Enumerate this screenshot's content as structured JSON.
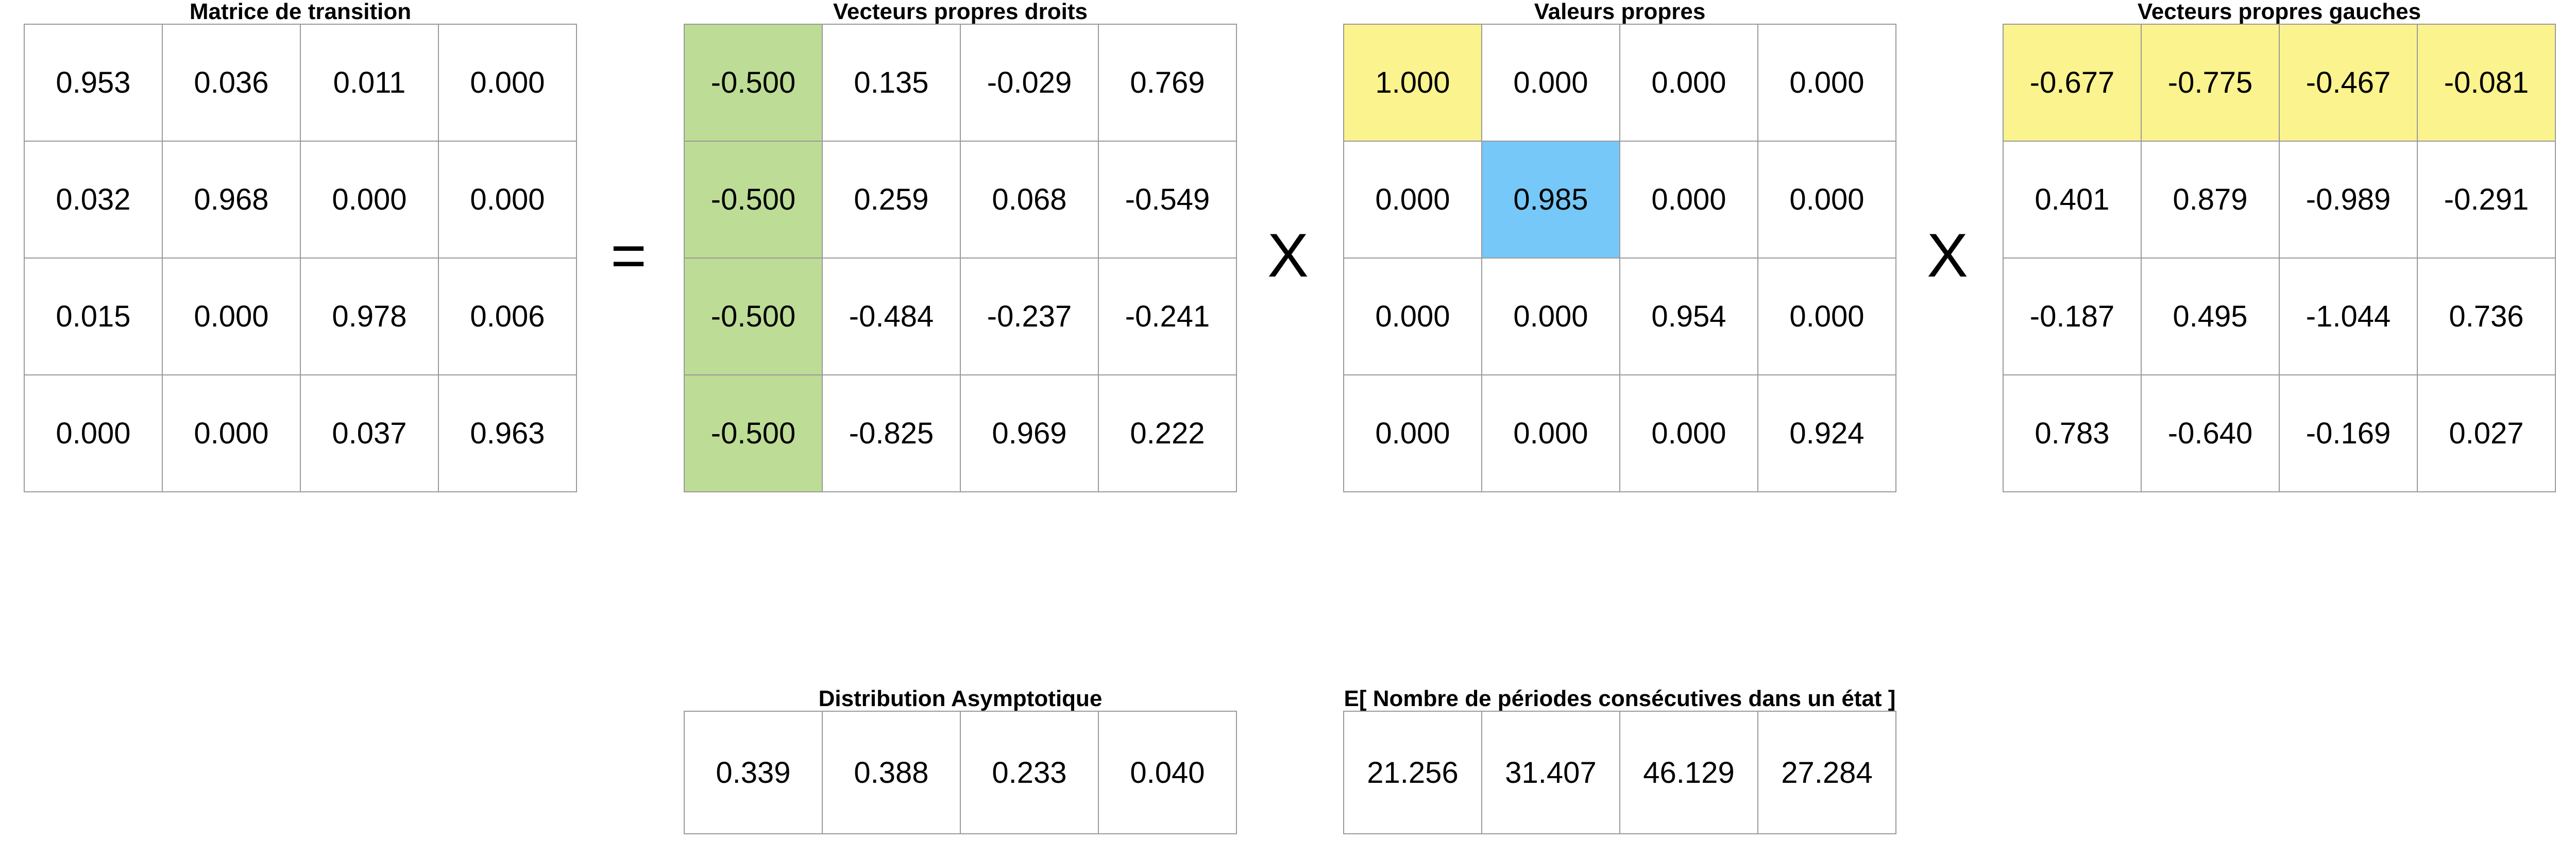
{
  "transition": {
    "title": "Matrice de transition",
    "rows": [
      [
        "0.953",
        "0.036",
        "0.011",
        "0.000"
      ],
      [
        "0.032",
        "0.968",
        "0.000",
        "0.000"
      ],
      [
        "0.015",
        "0.000",
        "0.978",
        "0.006"
      ],
      [
        "0.000",
        "0.000",
        "0.037",
        "0.963"
      ]
    ]
  },
  "right_eigenvectors": {
    "title": "Vecteurs propres droits",
    "rows": [
      [
        "-0.500",
        "0.135",
        "-0.029",
        "0.769"
      ],
      [
        "-0.500",
        "0.259",
        "0.068",
        "-0.549"
      ],
      [
        "-0.500",
        "-0.484",
        "-0.237",
        "-0.241"
      ],
      [
        "-0.500",
        "-0.825",
        "0.969",
        "0.222"
      ]
    ]
  },
  "eigenvalues": {
    "title": "Valeurs propres",
    "rows": [
      [
        "1.000",
        "0.000",
        "0.000",
        "0.000"
      ],
      [
        "0.000",
        "0.985",
        "0.000",
        "0.000"
      ],
      [
        "0.000",
        "0.000",
        "0.954",
        "0.000"
      ],
      [
        "0.000",
        "0.000",
        "0.000",
        "0.924"
      ]
    ]
  },
  "left_eigenvectors": {
    "title": "Vecteurs propres gauches",
    "rows": [
      [
        "-0.677",
        "-0.775",
        "-0.467",
        "-0.081"
      ],
      [
        "0.401",
        "0.879",
        "-0.989",
        "-0.291"
      ],
      [
        "-0.187",
        "0.495",
        "-1.044",
        "0.736"
      ],
      [
        "0.783",
        "-0.640",
        "-0.169",
        "0.027"
      ]
    ]
  },
  "operators": {
    "equals": "=",
    "times1": "X",
    "times2": "X"
  },
  "asymptotic_distribution": {
    "title": "Distribution Asymptotique",
    "rows": [
      [
        "0.339",
        "0.388",
        "0.233",
        "0.040"
      ]
    ]
  },
  "expected_periods": {
    "title": "E[ Nombre de périodes consécutives dans un état ]",
    "rows": [
      [
        "21.256",
        "31.407",
        "46.129",
        "27.284"
      ]
    ]
  },
  "colors": {
    "green": "#bddc95",
    "yellow": "#fbf38e",
    "blue": "#75c8f7",
    "border": "#9a9a9a"
  }
}
